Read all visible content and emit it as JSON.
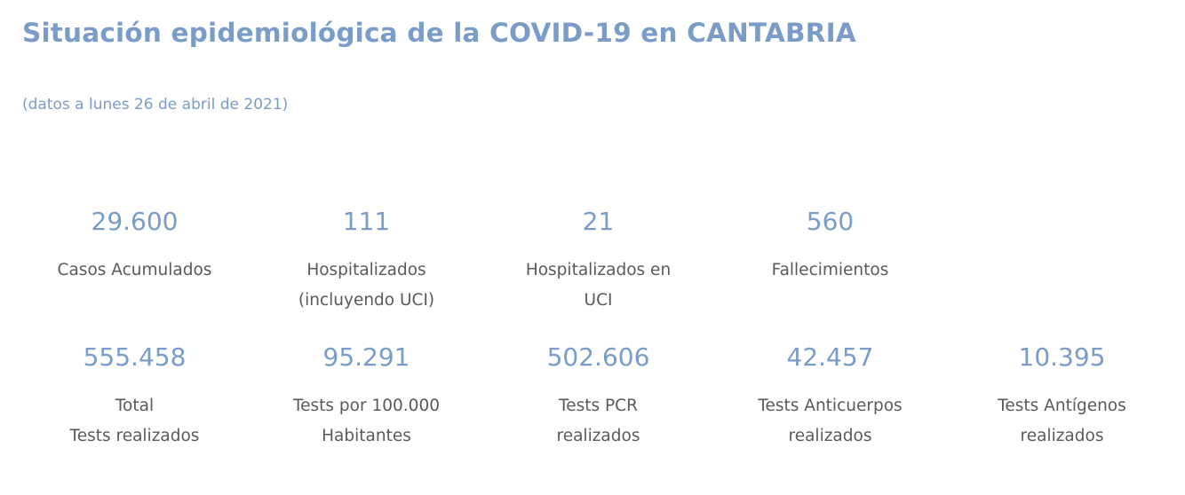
{
  "header": {
    "title": "Situación epidemiológica de la COVID-19 en CANTABRIA",
    "subtitle": "(datos a lunes 26 de abril de 2021)"
  },
  "colors": {
    "accent": "#7a9cc8",
    "text": "#5a5a5a"
  },
  "row1": [
    {
      "value": "29.600",
      "label": [
        "Casos Acumulados"
      ]
    },
    {
      "value": "111",
      "label": [
        "Hospitalizados",
        "(incluyendo UCI)"
      ]
    },
    {
      "value": "21",
      "label": [
        "Hospitalizados en",
        "UCI"
      ]
    },
    {
      "value": "560",
      "label": [
        "Fallecimientos"
      ]
    }
  ],
  "row2": [
    {
      "value": "555.458",
      "label": [
        "Total",
        "Tests realizados"
      ]
    },
    {
      "value": "95.291",
      "label": [
        "Tests por 100.000",
        "Habitantes"
      ]
    },
    {
      "value": "502.606",
      "label": [
        "Tests PCR",
        "realizados"
      ]
    },
    {
      "value": "42.457",
      "label": [
        "Tests Anticuerpos",
        "realizados"
      ]
    },
    {
      "value": "10.395",
      "label": [
        "Tests Antígenos",
        "realizados"
      ]
    }
  ]
}
